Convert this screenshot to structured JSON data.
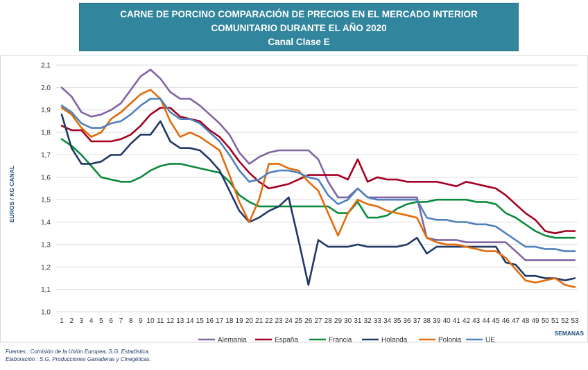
{
  "chart_data": {
    "type": "line",
    "title": [
      "CARNE DE PORCINO COMPARACIÓN DE PRECIOS EN EL MERCADO INTERIOR",
      "COMUNITARIO DURANTE  EL AÑO 2020",
      "Canal Clase E"
    ],
    "xlabel": "SEMANAS",
    "ylabel": "EUROS / KG CANAL",
    "ylim": [
      1.0,
      2.1
    ],
    "yticks": [
      "1,0",
      "1,1",
      "1,2",
      "1,3",
      "1,4",
      "1,5",
      "1,6",
      "1,7",
      "1,8",
      "1,9",
      "2,0",
      "2,1"
    ],
    "x": [
      1,
      2,
      3,
      4,
      5,
      6,
      7,
      8,
      9,
      10,
      11,
      12,
      13,
      14,
      15,
      16,
      17,
      18,
      19,
      20,
      21,
      22,
      23,
      24,
      25,
      26,
      27,
      28,
      29,
      30,
      31,
      32,
      33,
      34,
      35,
      36,
      37,
      38,
      39,
      40,
      41,
      42,
      43,
      44,
      45,
      46,
      47,
      48,
      49,
      50,
      51,
      52,
      53
    ],
    "grid": true,
    "legend_position": "bottom",
    "series": [
      {
        "name": "Alemania",
        "color": "#8064a2",
        "values": [
          2.0,
          1.96,
          1.89,
          1.87,
          1.88,
          1.9,
          1.93,
          1.99,
          2.05,
          2.08,
          2.04,
          1.98,
          1.95,
          1.95,
          1.92,
          1.88,
          1.84,
          1.79,
          1.71,
          1.66,
          1.69,
          1.71,
          1.72,
          1.72,
          1.72,
          1.72,
          1.68,
          1.58,
          1.51,
          1.51,
          1.55,
          1.51,
          1.51,
          1.51,
          1.51,
          1.51,
          1.51,
          1.33,
          1.32,
          1.32,
          1.32,
          1.31,
          1.31,
          1.31,
          1.31,
          1.31,
          1.27,
          1.23,
          1.23,
          1.23,
          1.23,
          1.23,
          1.23
        ]
      },
      {
        "name": "España",
        "color": "#a50021",
        "values": [
          1.83,
          1.81,
          1.81,
          1.76,
          1.76,
          1.76,
          1.77,
          1.79,
          1.83,
          1.88,
          1.91,
          1.91,
          1.87,
          1.86,
          1.85,
          1.81,
          1.78,
          1.73,
          1.67,
          1.62,
          1.58,
          1.55,
          1.56,
          1.57,
          1.59,
          1.61,
          1.61,
          1.61,
          1.61,
          1.59,
          1.68,
          1.58,
          1.6,
          1.59,
          1.59,
          1.58,
          1.58,
          1.58,
          1.58,
          1.57,
          1.56,
          1.58,
          1.57,
          1.56,
          1.55,
          1.52,
          1.48,
          1.44,
          1.41,
          1.36,
          1.35,
          1.36,
          1.36
        ]
      },
      {
        "name": "Francia",
        "color": "#0a8a3a",
        "values": [
          1.77,
          1.74,
          1.7,
          1.65,
          1.6,
          1.59,
          1.58,
          1.58,
          1.6,
          1.63,
          1.65,
          1.66,
          1.66,
          1.65,
          1.64,
          1.63,
          1.62,
          1.58,
          1.52,
          1.49,
          1.47,
          1.47,
          1.47,
          1.47,
          1.47,
          1.47,
          1.47,
          1.47,
          1.44,
          1.44,
          1.49,
          1.42,
          1.42,
          1.43,
          1.46,
          1.48,
          1.49,
          1.49,
          1.5,
          1.5,
          1.5,
          1.5,
          1.49,
          1.49,
          1.48,
          1.44,
          1.42,
          1.39,
          1.36,
          1.34,
          1.33,
          1.33,
          1.33
        ]
      },
      {
        "name": "Holanda",
        "color": "#1f3864",
        "values": [
          1.88,
          1.73,
          1.66,
          1.66,
          1.67,
          1.7,
          1.7,
          1.75,
          1.79,
          1.79,
          1.85,
          1.76,
          1.73,
          1.73,
          1.72,
          1.68,
          1.63,
          1.54,
          1.45,
          1.4,
          1.42,
          1.45,
          1.47,
          1.51,
          1.32,
          1.12,
          1.32,
          1.29,
          1.29,
          1.29,
          1.3,
          1.29,
          1.29,
          1.29,
          1.29,
          1.3,
          1.33,
          1.26,
          1.29,
          1.29,
          1.29,
          1.29,
          1.29,
          1.29,
          1.29,
          1.22,
          1.21,
          1.16,
          1.16,
          1.15,
          1.15,
          1.14,
          1.15
        ]
      },
      {
        "name": "Polonia",
        "color": "#e26b0a",
        "values": [
          1.91,
          1.88,
          1.82,
          1.78,
          1.8,
          1.86,
          1.89,
          1.93,
          1.97,
          1.99,
          1.95,
          1.85,
          1.78,
          1.8,
          1.78,
          1.75,
          1.72,
          1.61,
          1.49,
          1.4,
          1.5,
          1.66,
          1.66,
          1.64,
          1.63,
          1.58,
          1.54,
          1.44,
          1.34,
          1.44,
          1.5,
          1.48,
          1.47,
          1.45,
          1.44,
          1.43,
          1.42,
          1.33,
          1.31,
          1.3,
          1.3,
          1.29,
          1.28,
          1.27,
          1.27,
          1.24,
          1.19,
          1.14,
          1.13,
          1.14,
          1.15,
          1.12,
          1.11
        ]
      },
      {
        "name": "UE",
        "color": "#4f81bd",
        "values": [
          1.92,
          1.89,
          1.84,
          1.82,
          1.82,
          1.84,
          1.85,
          1.88,
          1.92,
          1.95,
          1.95,
          1.89,
          1.86,
          1.86,
          1.84,
          1.8,
          1.76,
          1.7,
          1.63,
          1.58,
          1.59,
          1.62,
          1.63,
          1.63,
          1.62,
          1.6,
          1.59,
          1.52,
          1.48,
          1.5,
          1.55,
          1.51,
          1.5,
          1.5,
          1.5,
          1.5,
          1.5,
          1.42,
          1.41,
          1.41,
          1.4,
          1.4,
          1.39,
          1.39,
          1.38,
          1.35,
          1.32,
          1.29,
          1.29,
          1.28,
          1.28,
          1.27,
          1.27
        ]
      }
    ]
  },
  "sources": {
    "line1": "Fuentes : Comisión de la Unión Europea, S.G. Estadística.",
    "line2": "Elaboración : S.G. Producciones Ganaderas y Cinegéticas."
  }
}
